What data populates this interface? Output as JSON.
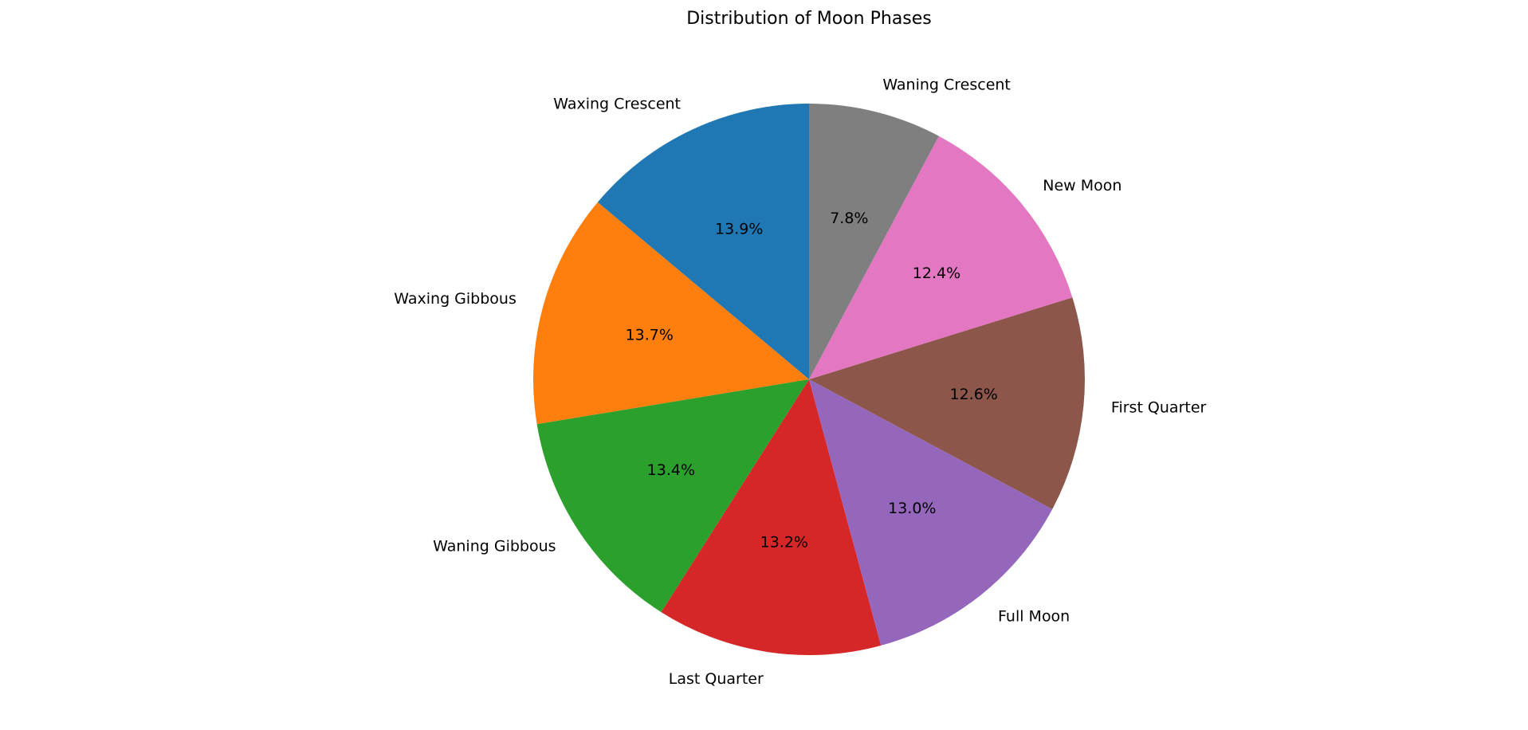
{
  "chart_data": {
    "type": "pie",
    "title": "Distribution of Moon Phases",
    "start_angle_deg": 90,
    "direction": "counterclockwise",
    "slices": [
      {
        "label": "Waxing Crescent",
        "value": 13.9,
        "pct_label": "13.9%",
        "color": "#1f77b4"
      },
      {
        "label": "Waxing Gibbous",
        "value": 13.7,
        "pct_label": "13.7%",
        "color": "#ff7f0e"
      },
      {
        "label": "Waning Gibbous",
        "value": 13.4,
        "pct_label": "13.4%",
        "color": "#2ca02c"
      },
      {
        "label": "Last Quarter",
        "value": 13.2,
        "pct_label": "13.2%",
        "color": "#d62728"
      },
      {
        "label": "Full Moon",
        "value": 13.0,
        "pct_label": "13.0%",
        "color": "#9467bd"
      },
      {
        "label": "First Quarter",
        "value": 12.6,
        "pct_label": "12.6%",
        "color": "#8c564b"
      },
      {
        "label": "New Moon",
        "value": 12.4,
        "pct_label": "12.4%",
        "color": "#e377c2"
      },
      {
        "label": "Waning Crescent",
        "value": 7.8,
        "pct_label": "7.8%",
        "color": "#7f7f7f"
      }
    ]
  }
}
